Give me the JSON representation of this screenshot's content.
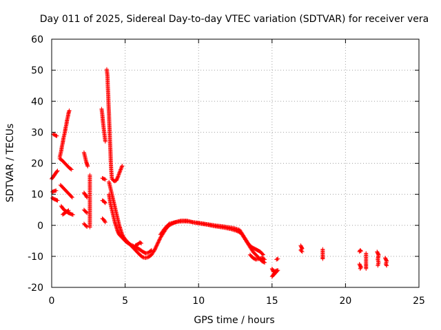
{
  "chart_data": {
    "type": "scatter",
    "title": "Day 011 of 2025, Sidereal Day-to-day VTEC variation (SDTVAR) for receiver vera",
    "xlabel": "GPS time / hours",
    "ylabel": "SDTVAR / TECUs",
    "xlim": [
      0,
      25
    ],
    "ylim": [
      -20,
      60
    ],
    "xticks": [
      0,
      5,
      10,
      15,
      20,
      25
    ],
    "yticks": [
      -20,
      -10,
      0,
      10,
      20,
      30,
      40,
      50,
      60
    ],
    "xtick_labels": [
      "0",
      "5",
      "10",
      "15",
      "20",
      "25"
    ],
    "ytick_labels": [
      "-20",
      "-10",
      "0",
      "10",
      "20",
      "30",
      "40",
      "50",
      "60"
    ],
    "grid": true,
    "marker": "+",
    "series": [
      {
        "name": "SDTVAR",
        "color": "#ff0000",
        "segments": [
          [
            [
              0.0,
              15.0
            ],
            [
              0.1,
              15.6
            ],
            [
              0.2,
              16.3
            ],
            [
              0.3,
              17.0
            ],
            [
              0.4,
              17.6
            ]
          ],
          [
            [
              0.1,
              29.4
            ],
            [
              0.25,
              29.0
            ],
            [
              0.35,
              28.8
            ]
          ],
          [
            [
              0.05,
              10.8
            ],
            [
              0.15,
              11.0
            ],
            [
              0.3,
              11.2
            ]
          ],
          [
            [
              0.05,
              8.8
            ],
            [
              0.15,
              8.5
            ],
            [
              0.3,
              8.2
            ],
            [
              0.4,
              8.0
            ]
          ],
          [
            [
              0.55,
              22.0
            ],
            [
              0.6,
              23.0
            ],
            [
              0.65,
              24.0
            ],
            [
              0.7,
              25.5
            ],
            [
              0.75,
              26.5
            ],
            [
              0.8,
              28.0
            ],
            [
              0.85,
              29.0
            ],
            [
              0.9,
              30.0
            ],
            [
              0.95,
              31.5
            ],
            [
              1.0,
              32.5
            ],
            [
              1.05,
              34.0
            ],
            [
              1.1,
              35.0
            ],
            [
              1.15,
              36.2
            ],
            [
              1.2,
              37.0
            ]
          ],
          [
            [
              0.55,
              21.5
            ],
            [
              0.7,
              21.0
            ],
            [
              0.8,
              20.5
            ],
            [
              0.9,
              20.0
            ],
            [
              1.0,
              19.5
            ],
            [
              1.1,
              19.0
            ],
            [
              1.2,
              18.5
            ],
            [
              1.35,
              18.0
            ]
          ],
          [
            [
              0.6,
              13.0
            ],
            [
              0.7,
              12.5
            ],
            [
              0.8,
              12.0
            ],
            [
              0.9,
              11.5
            ],
            [
              1.0,
              11.0
            ],
            [
              1.1,
              10.5
            ],
            [
              1.2,
              10.0
            ],
            [
              1.3,
              9.5
            ],
            [
              1.4,
              9.0
            ]
          ],
          [
            [
              0.65,
              6.2
            ],
            [
              0.75,
              5.5
            ],
            [
              0.85,
              5.0
            ],
            [
              0.95,
              4.6
            ],
            [
              1.05,
              4.3
            ],
            [
              1.15,
              4.0
            ],
            [
              1.25,
              3.8
            ],
            [
              1.35,
              3.6
            ],
            [
              1.45,
              3.4
            ]
          ],
          [
            [
              0.75,
              3.5
            ],
            [
              0.85,
              3.8
            ],
            [
              0.95,
              4.2
            ],
            [
              1.05,
              4.5
            ],
            [
              1.15,
              4.8
            ]
          ],
          [
            [
              2.2,
              23.5
            ],
            [
              2.25,
              22.5
            ],
            [
              2.3,
              21.5
            ],
            [
              2.35,
              20.5
            ],
            [
              2.4,
              19.8
            ],
            [
              2.45,
              19.0
            ]
          ],
          [
            [
              2.2,
              10.5
            ],
            [
              2.3,
              9.8
            ],
            [
              2.4,
              9.0
            ]
          ],
          [
            [
              2.2,
              5.0
            ],
            [
              2.3,
              4.5
            ],
            [
              2.4,
              4.0
            ]
          ],
          [
            [
              2.2,
              0.5
            ],
            [
              2.3,
              0.0
            ],
            [
              2.4,
              -0.5
            ]
          ],
          [
            [
              2.6,
              16.2
            ],
            [
              2.6,
              7.8
            ],
            [
              2.6,
              5.8
            ],
            [
              2.6,
              -0.6
            ]
          ],
          [
            [
              3.4,
              37.5
            ],
            [
              3.45,
              35.5
            ],
            [
              3.5,
              33.0
            ],
            [
              3.55,
              31.0
            ],
            [
              3.6,
              29.0
            ],
            [
              3.65,
              27.0
            ]
          ],
          [
            [
              3.45,
              15.2
            ],
            [
              3.55,
              15.0
            ],
            [
              3.65,
              14.8
            ]
          ],
          [
            [
              3.45,
              8.0
            ],
            [
              3.55,
              7.8
            ],
            [
              3.65,
              7.2
            ]
          ],
          [
            [
              3.45,
              2.2
            ],
            [
              3.55,
              1.8
            ],
            [
              3.65,
              1.0
            ]
          ],
          [
            [
              3.75,
              50.3
            ],
            [
              3.8,
              48.0
            ],
            [
              3.82,
              45.0
            ],
            [
              3.85,
              42.0
            ],
            [
              3.87,
              39.0
            ],
            [
              3.9,
              36.0
            ],
            [
              3.92,
              33.0
            ],
            [
              3.95,
              30.0
            ],
            [
              3.97,
              27.0
            ],
            [
              4.0,
              24.0
            ],
            [
              4.02,
              21.0
            ],
            [
              4.05,
              18.0
            ],
            [
              4.1,
              15.0
            ],
            [
              4.2,
              14.5
            ]
          ],
          [
            [
              4.2,
              14.5
            ],
            [
              4.3,
              14.2
            ],
            [
              4.4,
              14.5
            ],
            [
              4.5,
              15.5
            ],
            [
              4.6,
              16.8
            ],
            [
              4.7,
              18.0
            ],
            [
              4.8,
              19.2
            ]
          ],
          [
            [
              3.9,
              14.0
            ],
            [
              4.0,
              12.0
            ],
            [
              4.1,
              10.0
            ],
            [
              4.2,
              8.0
            ],
            [
              4.3,
              6.0
            ],
            [
              4.4,
              4.0
            ],
            [
              4.5,
              2.0
            ],
            [
              4.6,
              0.0
            ],
            [
              4.7,
              -1.5
            ],
            [
              4.8,
              -3.0
            ],
            [
              5.0,
              -4.5
            ],
            [
              5.2,
              -5.5
            ],
            [
              5.4,
              -6.5
            ],
            [
              5.6,
              -7.5
            ],
            [
              5.8,
              -8.5
            ],
            [
              6.0,
              -9.5
            ],
            [
              6.2,
              -10.3
            ],
            [
              6.4,
              -10.5
            ],
            [
              6.6,
              -10.2
            ],
            [
              6.8,
              -9.5
            ],
            [
              7.0,
              -8.0
            ]
          ],
          [
            [
              3.9,
              10.0
            ],
            [
              4.0,
              7.0
            ],
            [
              4.1,
              5.0
            ],
            [
              4.2,
              3.0
            ],
            [
              4.3,
              1.0
            ],
            [
              4.4,
              -0.5
            ],
            [
              4.5,
              -2.0
            ],
            [
              4.6,
              -3.0
            ],
            [
              4.8,
              -4.0
            ],
            [
              5.0,
              -5.0
            ],
            [
              5.2,
              -5.8
            ],
            [
              5.5,
              -6.5
            ],
            [
              5.8,
              -7.2
            ],
            [
              6.0,
              -7.8
            ],
            [
              6.2,
              -8.5
            ],
            [
              6.4,
              -9.0
            ],
            [
              6.6,
              -8.8
            ],
            [
              6.8,
              -8.0
            ]
          ],
          [
            [
              5.7,
              -6.5
            ],
            [
              5.9,
              -6.0
            ],
            [
              6.0,
              -5.5
            ],
            [
              6.1,
              -5.8
            ]
          ],
          [
            [
              7.0,
              -8.0
            ],
            [
              7.2,
              -6.0
            ],
            [
              7.4,
              -4.0
            ],
            [
              7.6,
              -2.5
            ],
            [
              7.8,
              -1.0
            ],
            [
              8.0,
              0.0
            ],
            [
              8.3,
              0.8
            ],
            [
              8.6,
              1.2
            ],
            [
              9.0,
              1.3
            ],
            [
              9.4,
              1.2
            ],
            [
              9.8,
              0.8
            ],
            [
              10.2,
              0.5
            ],
            [
              10.6,
              0.2
            ],
            [
              11.0,
              -0.2
            ],
            [
              11.4,
              -0.5
            ],
            [
              11.8,
              -0.8
            ],
            [
              12.2,
              -1.2
            ],
            [
              12.6,
              -1.8
            ],
            [
              12.9,
              -2.5
            ],
            [
              13.1,
              -4.0
            ],
            [
              13.3,
              -5.5
            ],
            [
              13.5,
              -7.0
            ],
            [
              13.7,
              -8.5
            ],
            [
              13.9,
              -9.5
            ],
            [
              14.1,
              -10.5
            ],
            [
              14.3,
              -11.5
            ],
            [
              14.5,
              -12.0
            ]
          ],
          [
            [
              7.4,
              -3.0
            ],
            [
              7.7,
              -1.0
            ],
            [
              8.0,
              0.5
            ],
            [
              8.4,
              1.0
            ],
            [
              8.8,
              1.5
            ],
            [
              9.2,
              1.5
            ],
            [
              9.6,
              1.0
            ],
            [
              10.0,
              0.8
            ],
            [
              10.4,
              0.5
            ],
            [
              10.8,
              0.2
            ],
            [
              11.2,
              -0.1
            ],
            [
              11.6,
              -0.3
            ],
            [
              12.0,
              -0.6
            ],
            [
              12.4,
              -0.9
            ],
            [
              12.8,
              -1.5
            ],
            [
              13.0,
              -3.0
            ],
            [
              13.2,
              -4.5
            ],
            [
              13.4,
              -6.0
            ],
            [
              13.6,
              -7.0
            ],
            [
              13.8,
              -7.5
            ],
            [
              14.0,
              -8.0
            ],
            [
              14.2,
              -8.5
            ],
            [
              14.4,
              -9.5
            ]
          ],
          [
            [
              13.5,
              -9.5
            ],
            [
              13.7,
              -10.5
            ],
            [
              13.9,
              -11.0
            ],
            [
              14.1,
              -10.8
            ],
            [
              14.3,
              -10.5
            ],
            [
              14.5,
              -11.0
            ]
          ],
          [
            [
              15.0,
              -14.0
            ],
            [
              15.1,
              -15.0
            ],
            [
              15.2,
              -14.8
            ],
            [
              15.3,
              -14.6
            ],
            [
              15.4,
              -14.5
            ],
            [
              15.0,
              -16.5
            ],
            [
              15.15,
              -15.5
            ]
          ],
          [
            [
              15.3,
              -11.0
            ],
            [
              15.4,
              -10.8
            ]
          ],
          [
            [
              16.95,
              -6.5
            ],
            [
              17.0,
              -7.0
            ],
            [
              17.05,
              -7.5
            ],
            [
              16.95,
              -8.0
            ],
            [
              17.05,
              -8.5
            ]
          ],
          [
            [
              18.45,
              -7.7
            ],
            [
              18.45,
              -10.0
            ],
            [
              18.45,
              -10.8
            ]
          ],
          [
            [
              20.95,
              -8.5
            ],
            [
              21.0,
              -8.0
            ],
            [
              21.05,
              -8.3
            ]
          ],
          [
            [
              20.95,
              -12.5
            ],
            [
              21.0,
              -13.0
            ],
            [
              21.05,
              -13.5
            ],
            [
              21.0,
              -14.0
            ]
          ],
          [
            [
              21.4,
              -9.0
            ],
            [
              21.4,
              -12.5
            ],
            [
              21.4,
              -14.0
            ]
          ],
          [
            [
              22.15,
              -8.5
            ],
            [
              22.2,
              -9.0
            ],
            [
              22.25,
              -9.5
            ],
            [
              22.2,
              -11.0
            ],
            [
              22.25,
              -12.0
            ],
            [
              22.2,
              -13.0
            ]
          ],
          [
            [
              22.7,
              -10.5
            ],
            [
              22.75,
              -11.0
            ],
            [
              22.8,
              -11.5
            ],
            [
              22.75,
              -12.5
            ],
            [
              22.8,
              -13.0
            ]
          ]
        ]
      }
    ]
  }
}
